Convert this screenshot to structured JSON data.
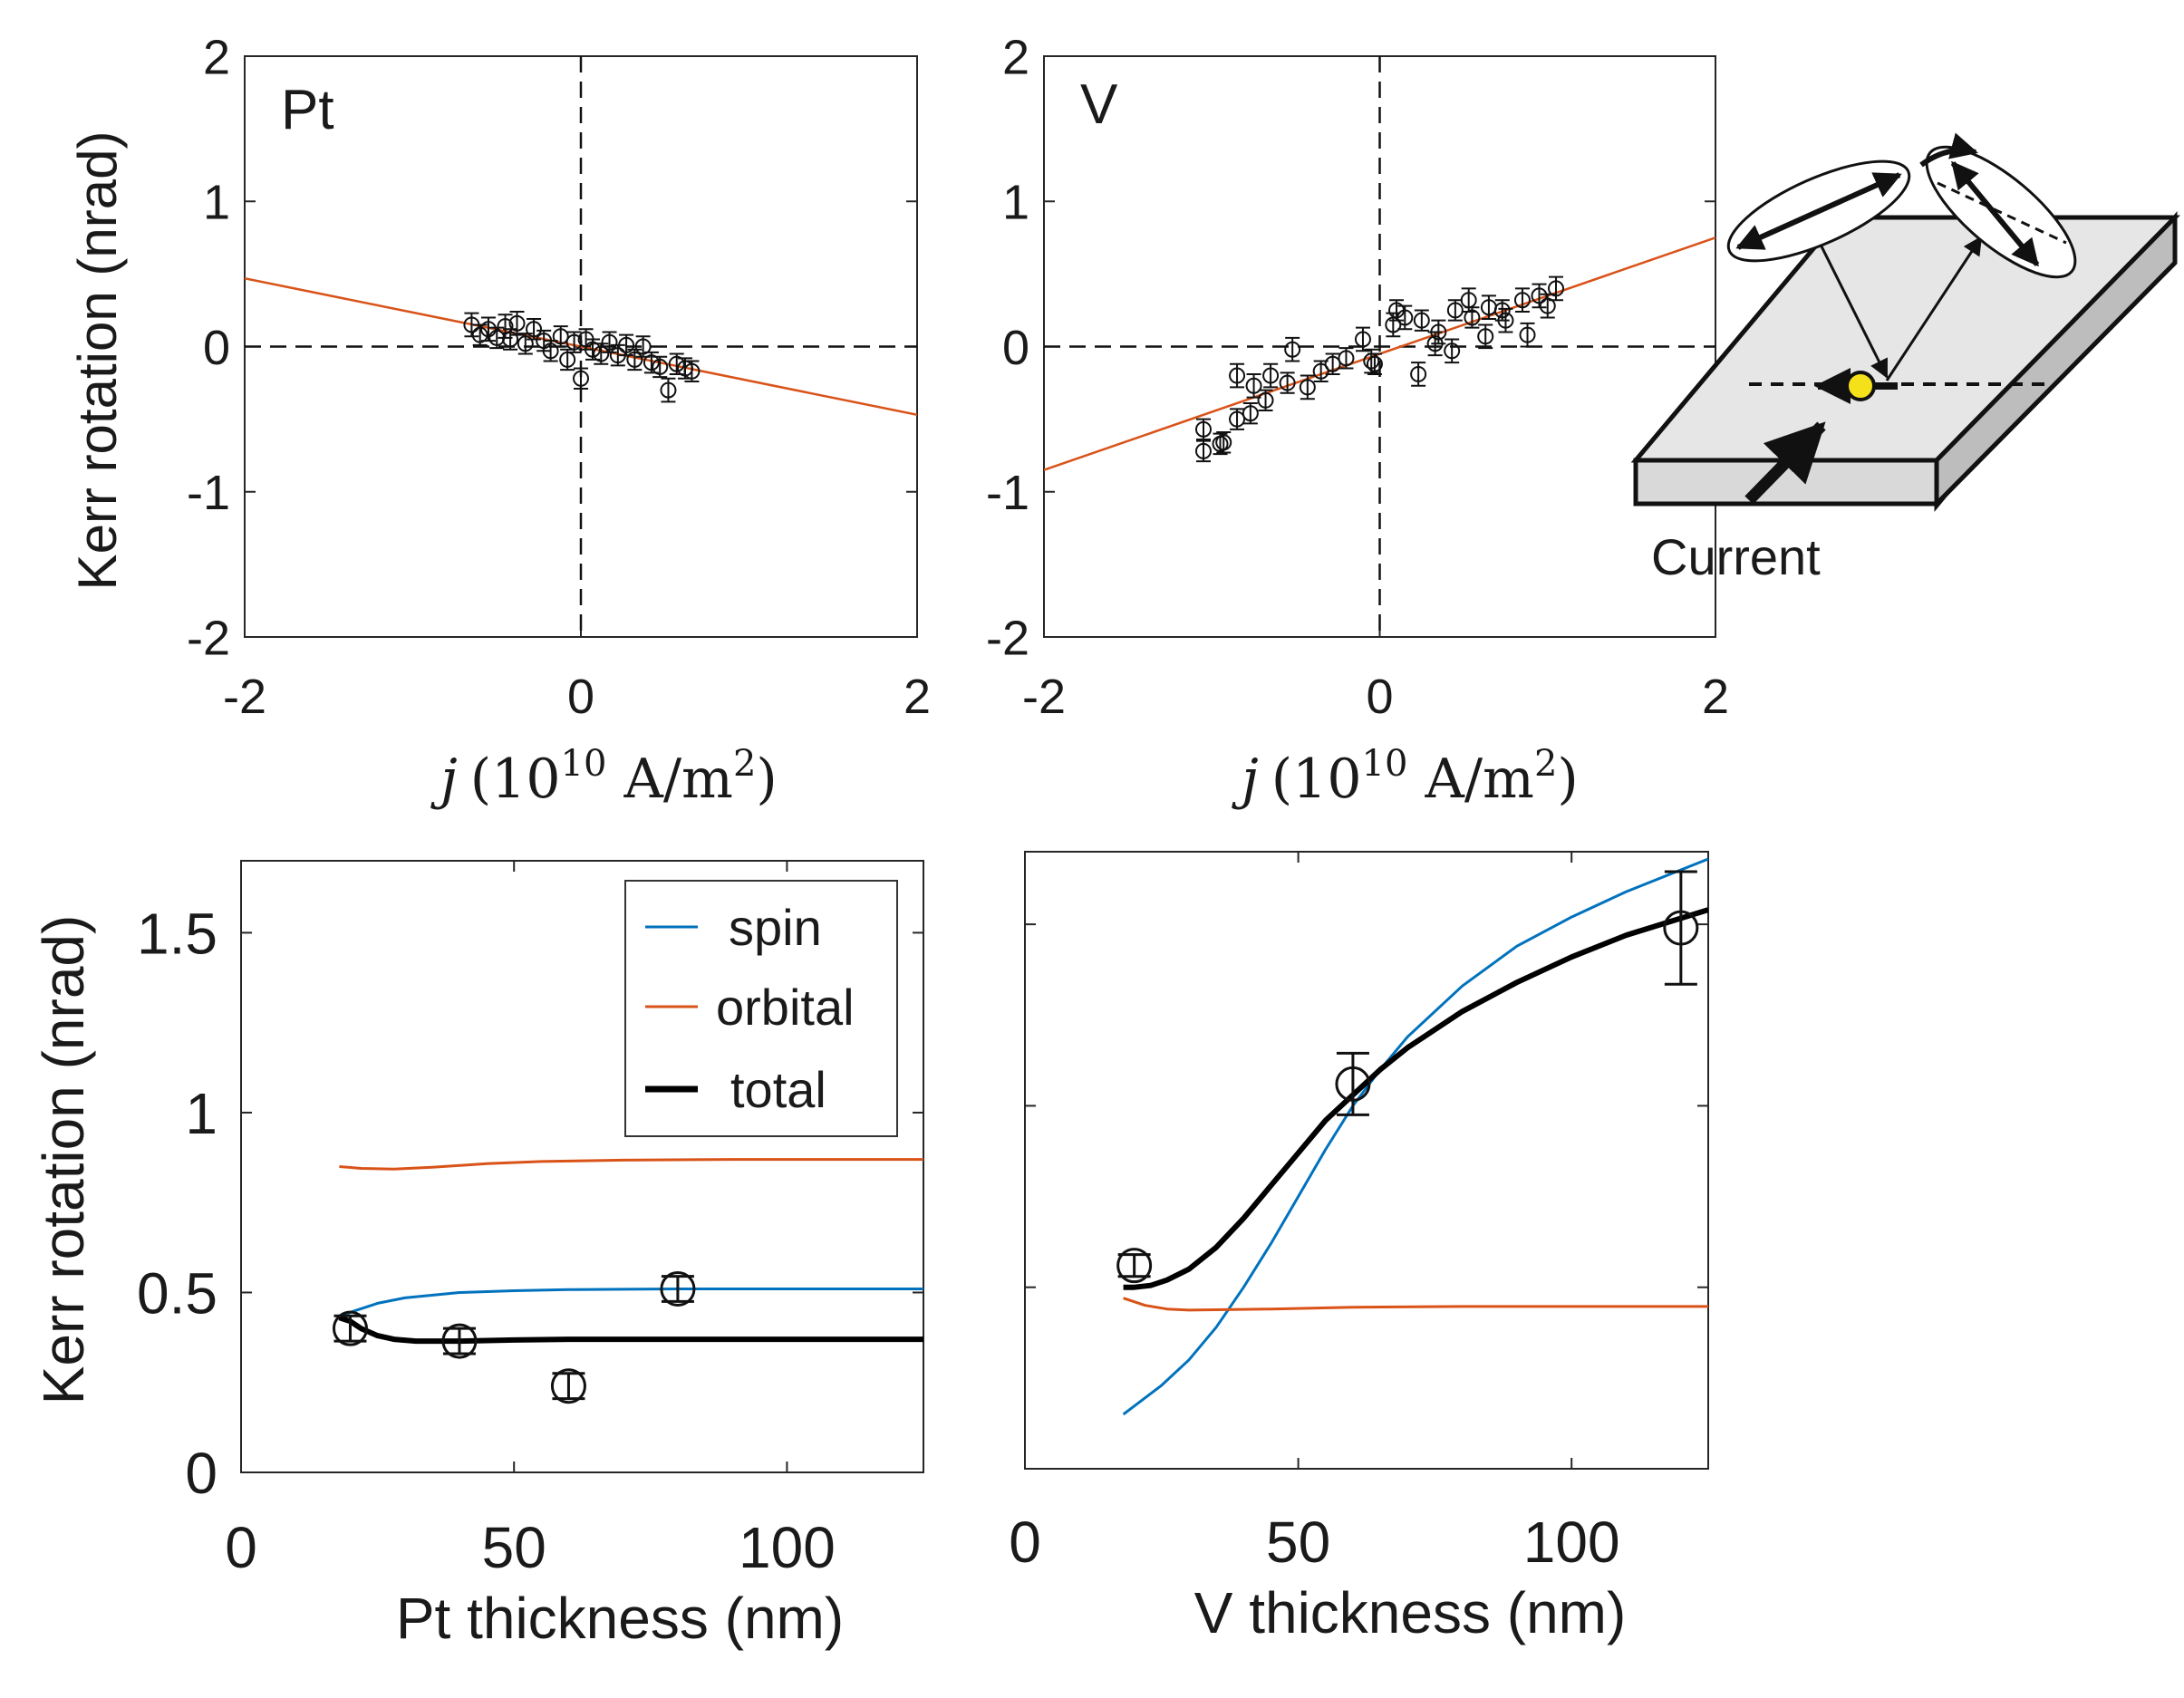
{
  "chart_data": [
    {
      "type": "scatter",
      "panel_label": "Pt",
      "xlabel": "j (10^10 A/m^2)",
      "xlabel_parts": {
        "var": "j",
        "open": "(10",
        "exp1": "10",
        "unit": " A/m",
        "exp2": "2",
        "close": ")"
      },
      "ylabel": "Kerr rotation (nrad)",
      "xlim": [
        -2,
        2
      ],
      "ylim": [
        -2,
        2
      ],
      "xticks": [
        "-2",
        "0",
        "2"
      ],
      "yticks": [
        "-2",
        "-1",
        "0",
        "1",
        "2"
      ],
      "guide_lines": {
        "x0": "dashed",
        "y0": "dashed"
      },
      "fit_line": {
        "color": "#d95319",
        "slope": -0.235,
        "intercept": 0.0
      },
      "series": [
        {
          "marker": "open-circle",
          "errorbars": true,
          "x": [
            -0.65,
            -0.6,
            -0.55,
            -0.5,
            -0.45,
            -0.42,
            -0.38,
            -0.33,
            -0.28,
            -0.22,
            -0.18,
            -0.12,
            -0.08,
            -0.04,
            0.0,
            0.03,
            0.07,
            0.12,
            0.17,
            0.22,
            0.27,
            0.32,
            0.37,
            0.42,
            0.47,
            0.52,
            0.57,
            0.62,
            0.66
          ],
          "y": [
            0.15,
            0.08,
            0.12,
            0.06,
            0.14,
            0.05,
            0.16,
            0.02,
            0.12,
            0.04,
            -0.03,
            0.07,
            -0.09,
            0.03,
            -0.22,
            0.05,
            -0.02,
            -0.05,
            0.03,
            -0.06,
            0.01,
            -0.09,
            0.0,
            -0.11,
            -0.14,
            -0.3,
            -0.12,
            -0.15,
            -0.17
          ],
          "err": [
            0.08,
            0.07,
            0.08,
            0.07,
            0.08,
            0.07,
            0.08,
            0.07,
            0.07,
            0.07,
            0.07,
            0.07,
            0.07,
            0.07,
            0.07,
            0.07,
            0.07,
            0.07,
            0.07,
            0.07,
            0.07,
            0.07,
            0.07,
            0.07,
            0.07,
            0.08,
            0.07,
            0.07,
            0.07
          ]
        }
      ]
    },
    {
      "type": "scatter",
      "panel_label": "V",
      "xlabel": "j (10^10 A/m^2)",
      "xlabel_parts": {
        "var": "j",
        "open": "(10",
        "exp1": "10",
        "unit": " A/m",
        "exp2": "2",
        "close": ")"
      },
      "xlim": [
        -2,
        2
      ],
      "ylim": [
        -2,
        2
      ],
      "xticks": [
        "-2",
        "0",
        "2"
      ],
      "yticks": [
        "-2",
        "-1",
        "0",
        "1",
        "2"
      ],
      "guide_lines": {
        "x0": "dashed",
        "y0": "dashed"
      },
      "fit_line": {
        "color": "#d95319",
        "slope": 0.4,
        "intercept": -0.05
      },
      "series": [
        {
          "marker": "open-circle",
          "errorbars": true,
          "x": [
            -1.05,
            -1.05,
            -0.95,
            -0.93,
            -0.85,
            -0.85,
            -0.77,
            -0.75,
            -0.68,
            -0.65,
            -0.55,
            -0.52,
            -0.43,
            -0.35,
            -0.28,
            -0.2,
            -0.1,
            -0.05,
            -0.03,
            0.08,
            0.1,
            0.15,
            0.23,
            0.25,
            0.33,
            0.35,
            0.43,
            0.45,
            0.53,
            0.55,
            0.63,
            0.65,
            0.73,
            0.75,
            0.85,
            0.88,
            0.95,
            1.0,
            1.05
          ],
          "y": [
            -0.72,
            -0.57,
            -0.67,
            -0.66,
            -0.5,
            -0.2,
            -0.46,
            -0.27,
            -0.37,
            -0.2,
            -0.25,
            -0.02,
            -0.28,
            -0.17,
            -0.12,
            -0.08,
            0.05,
            -0.1,
            -0.12,
            0.15,
            0.25,
            0.2,
            -0.19,
            0.18,
            0.02,
            0.1,
            -0.03,
            0.25,
            0.32,
            0.2,
            0.07,
            0.27,
            0.25,
            0.18,
            0.32,
            0.08,
            0.35,
            0.28,
            0.4
          ],
          "err": [
            0.07,
            0.07,
            0.07,
            0.07,
            0.07,
            0.08,
            0.07,
            0.08,
            0.07,
            0.08,
            0.07,
            0.08,
            0.08,
            0.07,
            0.07,
            0.07,
            0.08,
            0.08,
            0.07,
            0.08,
            0.07,
            0.08,
            0.08,
            0.07,
            0.08,
            0.08,
            0.08,
            0.07,
            0.08,
            0.07,
            0.08,
            0.08,
            0.07,
            0.08,
            0.08,
            0.08,
            0.08,
            0.08,
            0.08
          ]
        }
      ]
    },
    {
      "type": "line",
      "xlabel": "Pt thickness (nm)",
      "ylabel": "Kerr rotation (nrad)",
      "xlim": [
        0,
        125
      ],
      "ylim": [
        0,
        1.7
      ],
      "xticks": [
        "0",
        "50",
        "100"
      ],
      "yticks": [
        "0",
        "0.5",
        "1",
        "1.5"
      ],
      "legend": {
        "position": "top-right",
        "entries": [
          "spin",
          "orbital",
          "total"
        ]
      },
      "series": [
        {
          "name": "spin",
          "color": "#0072bd",
          "x": [
            18,
            20,
            25,
            30,
            40,
            50,
            60,
            70,
            80,
            100,
            125
          ],
          "y": [
            0.43,
            0.445,
            0.47,
            0.485,
            0.5,
            0.505,
            0.508,
            0.509,
            0.51,
            0.51,
            0.51
          ]
        },
        {
          "name": "orbital",
          "color": "#d95319",
          "x": [
            18,
            22,
            28,
            35,
            45,
            55,
            70,
            90,
            125
          ],
          "y": [
            0.85,
            0.845,
            0.843,
            0.848,
            0.858,
            0.864,
            0.868,
            0.87,
            0.87
          ]
        },
        {
          "name": "total",
          "color": "#000000",
          "x": [
            18,
            20,
            22,
            25,
            28,
            32,
            40,
            50,
            60,
            80,
            100,
            125
          ],
          "y": [
            0.43,
            0.42,
            0.4,
            0.38,
            0.37,
            0.365,
            0.365,
            0.368,
            0.37,
            0.37,
            0.37,
            0.37
          ]
        },
        {
          "name": "",
          "marker": "open-circle",
          "errorbars": true,
          "x": [
            20,
            40,
            60,
            80
          ],
          "y": [
            0.4,
            0.365,
            0.24,
            0.51
          ],
          "err": [
            0.035,
            0.035,
            0.035,
            0.035
          ]
        }
      ]
    },
    {
      "type": "line",
      "xlabel": "V thickness (nm)",
      "xlim": [
        0,
        125
      ],
      "ylim": [
        0,
        1.7
      ],
      "xticks": [
        "0",
        "50",
        "100"
      ],
      "series": [
        {
          "name": "spin",
          "color": "#0072bd",
          "x": [
            18,
            25,
            30,
            35,
            40,
            45,
            50,
            55,
            60,
            65,
            70,
            80,
            90,
            100,
            110,
            125
          ],
          "y": [
            0.15,
            0.23,
            0.3,
            0.39,
            0.5,
            0.62,
            0.75,
            0.88,
            1.0,
            1.1,
            1.19,
            1.33,
            1.44,
            1.52,
            1.59,
            1.68
          ]
        },
        {
          "name": "orbital",
          "color": "#d95319",
          "x": [
            18,
            22,
            26,
            30,
            35,
            45,
            60,
            80,
            100,
            125
          ],
          "y": [
            0.47,
            0.45,
            0.44,
            0.437,
            0.438,
            0.44,
            0.445,
            0.447,
            0.447,
            0.447
          ]
        },
        {
          "name": "total",
          "color": "#000000",
          "x": [
            18,
            20,
            23,
            26,
            30,
            35,
            40,
            45,
            50,
            55,
            60,
            65,
            70,
            80,
            90,
            100,
            110,
            125
          ],
          "y": [
            0.5,
            0.5,
            0.505,
            0.52,
            0.55,
            0.61,
            0.69,
            0.78,
            0.87,
            0.96,
            1.03,
            1.1,
            1.16,
            1.26,
            1.34,
            1.41,
            1.47,
            1.54
          ]
        },
        {
          "name": "",
          "marker": "open-circle",
          "errorbars": true,
          "x": [
            20,
            60,
            120
          ],
          "y": [
            0.56,
            1.06,
            1.49
          ],
          "err": [
            0.03,
            0.085,
            0.155
          ]
        }
      ]
    }
  ],
  "schematic": {
    "label": "Current"
  }
}
